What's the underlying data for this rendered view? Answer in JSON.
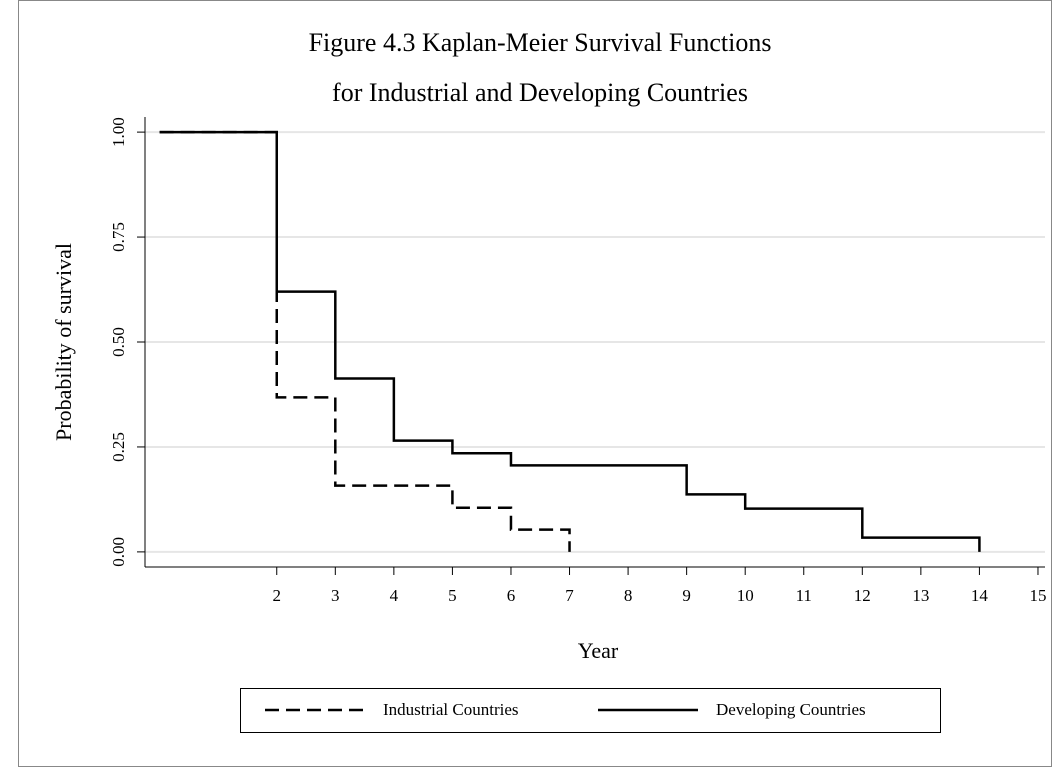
{
  "chart_data": {
    "type": "step",
    "title": [
      "Figure 4.3 Kaplan-Meier Survival Functions",
      "for Industrial and Developing Countries"
    ],
    "x_label": "Year",
    "y_label": "Probability of survival",
    "series": [
      {
        "name": "Industrial Countries",
        "color": "#000000",
        "dash": true,
        "x": [
          0,
          2,
          3,
          5,
          6,
          7
        ],
        "values": [
          1,
          0.368,
          0.158,
          0.105,
          0.053,
          0
        ]
      },
      {
        "name": "Developing Countries",
        "color": "#000000",
        "dash": false,
        "x": [
          0,
          2,
          3,
          4,
          5,
          6,
          9,
          10,
          12,
          14
        ],
        "values": [
          1,
          0.62,
          0.413,
          0.265,
          0.235,
          0.206,
          0.137,
          0.103,
          0.034,
          0
        ]
      }
    ],
    "xlim": [
      -0.25,
      15.12
    ],
    "ylim": [
      -0.036,
      1.036
    ],
    "xticks": [
      2,
      3,
      4,
      5,
      6,
      7,
      8,
      9,
      10,
      11,
      12,
      13,
      14,
      15
    ],
    "yticks": [
      {
        "value": 0,
        "label": "0.00"
      },
      {
        "value": 0.25,
        "label": "0.25"
      },
      {
        "value": 0.5,
        "label": "0.50"
      },
      {
        "value": 0.75,
        "label": "0.75"
      },
      {
        "value": 1,
        "label": "1.00"
      }
    ],
    "grid": true,
    "legend": "bottom"
  }
}
